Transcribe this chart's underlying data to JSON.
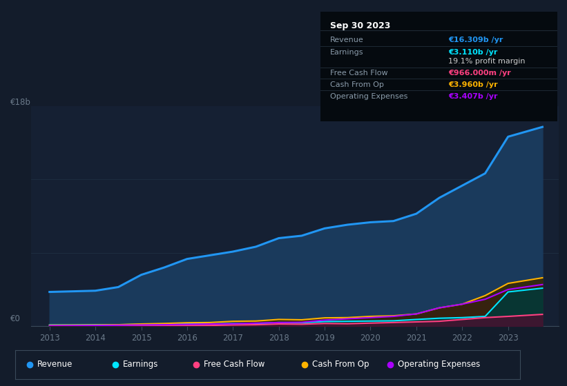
{
  "background_color": "#131c2b",
  "plot_bg_color": "#152033",
  "years": [
    2013,
    2013.5,
    2014,
    2014.5,
    2015,
    2015.5,
    2016,
    2016.5,
    2017,
    2017.5,
    2018,
    2018.5,
    2019,
    2019.5,
    2020,
    2020.5,
    2021,
    2021.5,
    2022,
    2022.5,
    2023,
    2023.75
  ],
  "revenue": [
    2.8,
    2.85,
    2.9,
    3.2,
    4.2,
    4.8,
    5.5,
    5.8,
    6.1,
    6.5,
    7.2,
    7.4,
    8.0,
    8.3,
    8.5,
    8.6,
    9.2,
    10.5,
    11.5,
    12.5,
    15.5,
    16.3
  ],
  "earnings": [
    0.1,
    0.1,
    0.12,
    0.12,
    0.15,
    0.14,
    0.18,
    0.18,
    0.22,
    0.22,
    0.3,
    0.28,
    0.38,
    0.4,
    0.42,
    0.44,
    0.55,
    0.65,
    0.7,
    0.8,
    2.8,
    3.11
  ],
  "free_cash": [
    -0.05,
    -0.05,
    0.0,
    0.0,
    0.05,
    0.04,
    0.06,
    0.06,
    0.1,
    0.12,
    0.18,
    0.16,
    0.22,
    0.2,
    0.25,
    0.3,
    0.35,
    0.4,
    0.55,
    0.7,
    0.8,
    0.966
  ],
  "cash_from_op": [
    0.08,
    0.09,
    0.1,
    0.12,
    0.18,
    0.22,
    0.28,
    0.3,
    0.4,
    0.42,
    0.55,
    0.52,
    0.68,
    0.7,
    0.8,
    0.85,
    1.0,
    1.5,
    1.8,
    2.5,
    3.5,
    3.96
  ],
  "op_expenses": [
    0.04,
    0.05,
    0.06,
    0.08,
    0.1,
    0.12,
    0.15,
    0.18,
    0.2,
    0.25,
    0.3,
    0.32,
    0.5,
    0.6,
    0.7,
    0.8,
    1.0,
    1.5,
    1.8,
    2.2,
    3.0,
    3.407
  ],
  "revenue_color": "#2196f3",
  "earnings_color": "#00e5ff",
  "free_cash_color": "#ff4081",
  "cash_from_op_color": "#ffb300",
  "op_expenses_color": "#aa00ff",
  "revenue_fill": "#1a3a5c",
  "earnings_fill": "#003a3a",
  "free_cash_fill": "#4a1030",
  "cash_from_op_fill": "#3a2800",
  "op_expenses_fill": "#2a0a4a",
  "ylim": [
    0,
    18
  ],
  "xlim": [
    2012.6,
    2024.1
  ],
  "xlabel_years": [
    2013,
    2014,
    2015,
    2016,
    2017,
    2018,
    2019,
    2020,
    2021,
    2022,
    2023
  ],
  "legend_items": [
    {
      "label": "Revenue",
      "color": "#2196f3"
    },
    {
      "label": "Earnings",
      "color": "#00e5ff"
    },
    {
      "label": "Free Cash Flow",
      "color": "#ff4081"
    },
    {
      "label": "Cash From Op",
      "color": "#ffb300"
    },
    {
      "label": "Operating Expenses",
      "color": "#aa00ff"
    }
  ],
  "tooltip_title": "Sep 30 2023",
  "tooltip_rows": [
    {
      "label": "Revenue",
      "value": "€16.309b /yr",
      "color": "#2196f3",
      "bold_value": true
    },
    {
      "label": "Earnings",
      "value": "€3.110b /yr",
      "color": "#00e5ff",
      "bold_value": true
    },
    {
      "label": "",
      "value": "19.1% profit margin",
      "color": "#cccccc",
      "bold_value": false
    },
    {
      "label": "Free Cash Flow",
      "value": "€966.000m /yr",
      "color": "#ff4081",
      "bold_value": true
    },
    {
      "label": "Cash From Op",
      "value": "€3.960b /yr",
      "color": "#ffb300",
      "bold_value": true
    },
    {
      "label": "Operating Expenses",
      "value": "€3.407b /yr",
      "color": "#aa00ff",
      "bold_value": true
    }
  ],
  "grid_color": "#1e2d40",
  "axis_color": "#3a4a5a",
  "tick_color": "#6b7a8a"
}
